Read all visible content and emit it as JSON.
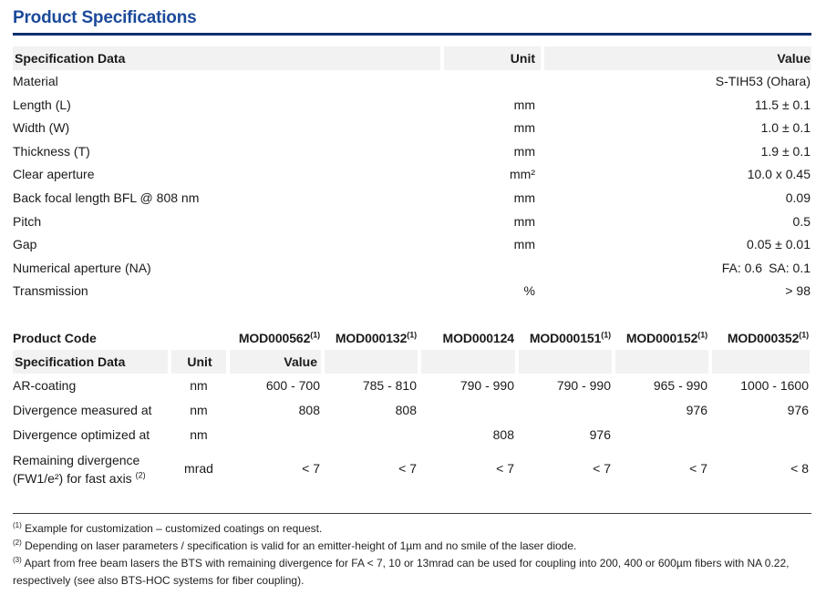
{
  "page": {
    "title": "Product Specifications"
  },
  "colors": {
    "title_blue": "#1B4A9B",
    "rule_navy": "#0D2F6E",
    "header_bg": "#F2F2F2",
    "text": "#1A1A1A",
    "footnote_rule": "#3C3C3C"
  },
  "table1": {
    "headers": {
      "spec": "Specification Data",
      "unit": "Unit",
      "value": "Value"
    },
    "rows": [
      {
        "spec": "Material",
        "unit": "",
        "value": "S-TIH53 (Ohara)"
      },
      {
        "spec": "Length (L)",
        "unit": "mm",
        "value": "11.5 ± 0.1"
      },
      {
        "spec": "Width (W)",
        "unit": "mm",
        "value": "1.0 ± 0.1"
      },
      {
        "spec": "Thickness (T)",
        "unit": "mm",
        "value": "1.9 ± 0.1"
      },
      {
        "spec": "Clear aperture",
        "unit": "mm²",
        "value": "10.0 x 0.45"
      },
      {
        "spec": "Back focal length BFL @ 808 nm",
        "unit": "mm",
        "value": "0.09"
      },
      {
        "spec": "Pitch",
        "unit": "mm",
        "value": "0.5"
      },
      {
        "spec": "Gap",
        "unit": "mm",
        "value": "0.05 ± 0.01"
      },
      {
        "spec": "Numerical aperture (NA)",
        "unit": "",
        "value": "FA: 0.6 SA: 0.1"
      },
      {
        "spec": "Transmission",
        "unit": "%",
        "value": "> 98"
      }
    ]
  },
  "table2": {
    "product_code_label": "Product Code",
    "product_codes": [
      {
        "code": "MOD000562",
        "sup": "(1)"
      },
      {
        "code": "MOD000132",
        "sup": "(1)"
      },
      {
        "code": "MOD000124",
        "sup": ""
      },
      {
        "code": "MOD000151",
        "sup": "(1)"
      },
      {
        "code": "MOD000152",
        "sup": "(1)"
      },
      {
        "code": "MOD000352",
        "sup": "(1)"
      }
    ],
    "headers": {
      "spec": "Specification Data",
      "unit": "Unit",
      "value": "Value"
    },
    "rows": [
      {
        "spec": "AR-coating",
        "unit": "nm",
        "values": [
          "600 - 700",
          "785 - 810",
          "790 - 990",
          "790 - 990",
          "965 - 990",
          "1000 - 1600"
        ]
      },
      {
        "spec": "Divergence measured at",
        "unit": "nm",
        "values": [
          "808",
          "808",
          "",
          "",
          "976",
          "976"
        ]
      },
      {
        "spec": "Divergence optimized at",
        "unit": "nm",
        "values": [
          "",
          "",
          "808",
          "976",
          "",
          ""
        ]
      },
      {
        "spec_line1": "Remaining divergence",
        "spec_line2": "(FW1/e²) for fast axis",
        "spec_sup": "(2)",
        "unit": "mrad",
        "values": [
          "< 7",
          "< 7",
          "< 7",
          "< 7",
          "< 7",
          "< 8"
        ]
      }
    ]
  },
  "footnotes": [
    {
      "marker": "(1)",
      "text": "Example for customization – customized coatings on request."
    },
    {
      "marker": "(2)",
      "text": "Depending on laser parameters / specification is valid for an emitter-height of 1µm and no smile of the laser diode."
    },
    {
      "marker": "(3)",
      "text": "Apart from free beam lasers the BTS with remaining divergence for FA < 7, 10 or 13mrad can be used for coupling into 200, 400 or 600µm fibers with NA 0.22, respectively (see also BTS-HOC systems for fiber coupling)."
    }
  ]
}
